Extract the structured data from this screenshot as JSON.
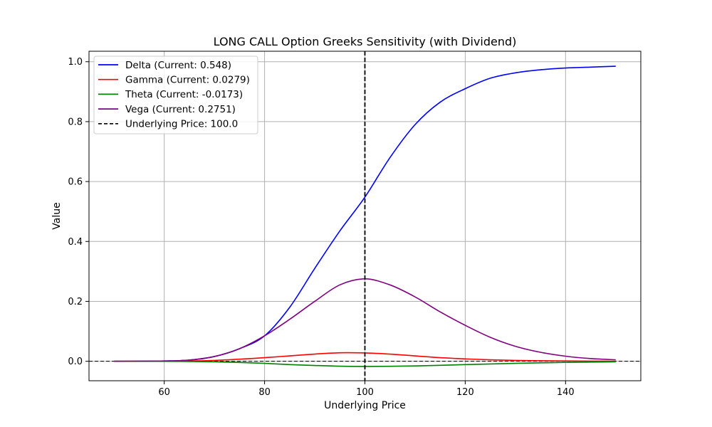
{
  "chart_data": {
    "type": "line",
    "title": "LONG CALL Option Greeks Sensitivity (with Dividend)",
    "xlabel": "Underlying Price",
    "ylabel": "Value",
    "xlim": [
      45,
      155
    ],
    "ylim": [
      -0.065,
      1.035
    ],
    "xticks": [
      60,
      80,
      100,
      120,
      140
    ],
    "yticks": [
      0.0,
      0.2,
      0.4,
      0.6,
      0.8,
      1.0
    ],
    "xtick_labels": [
      "60",
      "80",
      "100",
      "120",
      "140"
    ],
    "ytick_labels": [
      "0.0",
      "0.2",
      "0.4",
      "0.6",
      "0.8",
      "1.0"
    ],
    "grid": true,
    "legend_position": "top-left",
    "x": [
      50,
      55,
      60,
      65,
      70,
      75,
      80,
      85,
      90,
      95,
      100,
      105,
      110,
      115,
      120,
      125,
      130,
      135,
      140,
      145,
      150
    ],
    "series": [
      {
        "name": "Delta (Current: 0.548)",
        "color": "#0000ff",
        "values": [
          0.0,
          0.0,
          0.001,
          0.004,
          0.016,
          0.042,
          0.085,
          0.18,
          0.31,
          0.435,
          0.548,
          0.68,
          0.79,
          0.865,
          0.91,
          0.945,
          0.963,
          0.973,
          0.979,
          0.982,
          0.985
        ]
      },
      {
        "name": "Gamma (Current: 0.0279)",
        "color": "#ff0000",
        "values": [
          0.0,
          0.0,
          0.0003,
          0.001,
          0.003,
          0.007,
          0.012,
          0.018,
          0.024,
          0.0285,
          0.0279,
          0.024,
          0.018,
          0.012,
          0.008,
          0.005,
          0.003,
          0.0018,
          0.001,
          0.0006,
          0.0003
        ]
      },
      {
        "name": "Theta (Current: -0.0173)",
        "color": "#008000",
        "values": [
          0.0,
          0.0,
          -0.0002,
          -0.0008,
          -0.002,
          -0.004,
          -0.007,
          -0.011,
          -0.014,
          -0.0165,
          -0.0173,
          -0.0168,
          -0.0155,
          -0.0135,
          -0.0112,
          -0.009,
          -0.007,
          -0.0052,
          -0.0038,
          -0.0028,
          -0.002
        ]
      },
      {
        "name": "Vega (Current: 0.2751)",
        "color": "#800080",
        "values": [
          0.0,
          0.0005,
          0.001,
          0.004,
          0.016,
          0.042,
          0.085,
          0.14,
          0.2,
          0.255,
          0.2751,
          0.255,
          0.215,
          0.165,
          0.12,
          0.08,
          0.05,
          0.03,
          0.017,
          0.009,
          0.005
        ]
      }
    ],
    "reference_lines": [
      {
        "orientation": "vertical",
        "value": 100,
        "name": "Underlying Price: 100.0",
        "color": "#000000",
        "style": "dashed"
      },
      {
        "orientation": "horizontal",
        "value": 0,
        "color": "#000000",
        "style": "dashed"
      }
    ]
  }
}
